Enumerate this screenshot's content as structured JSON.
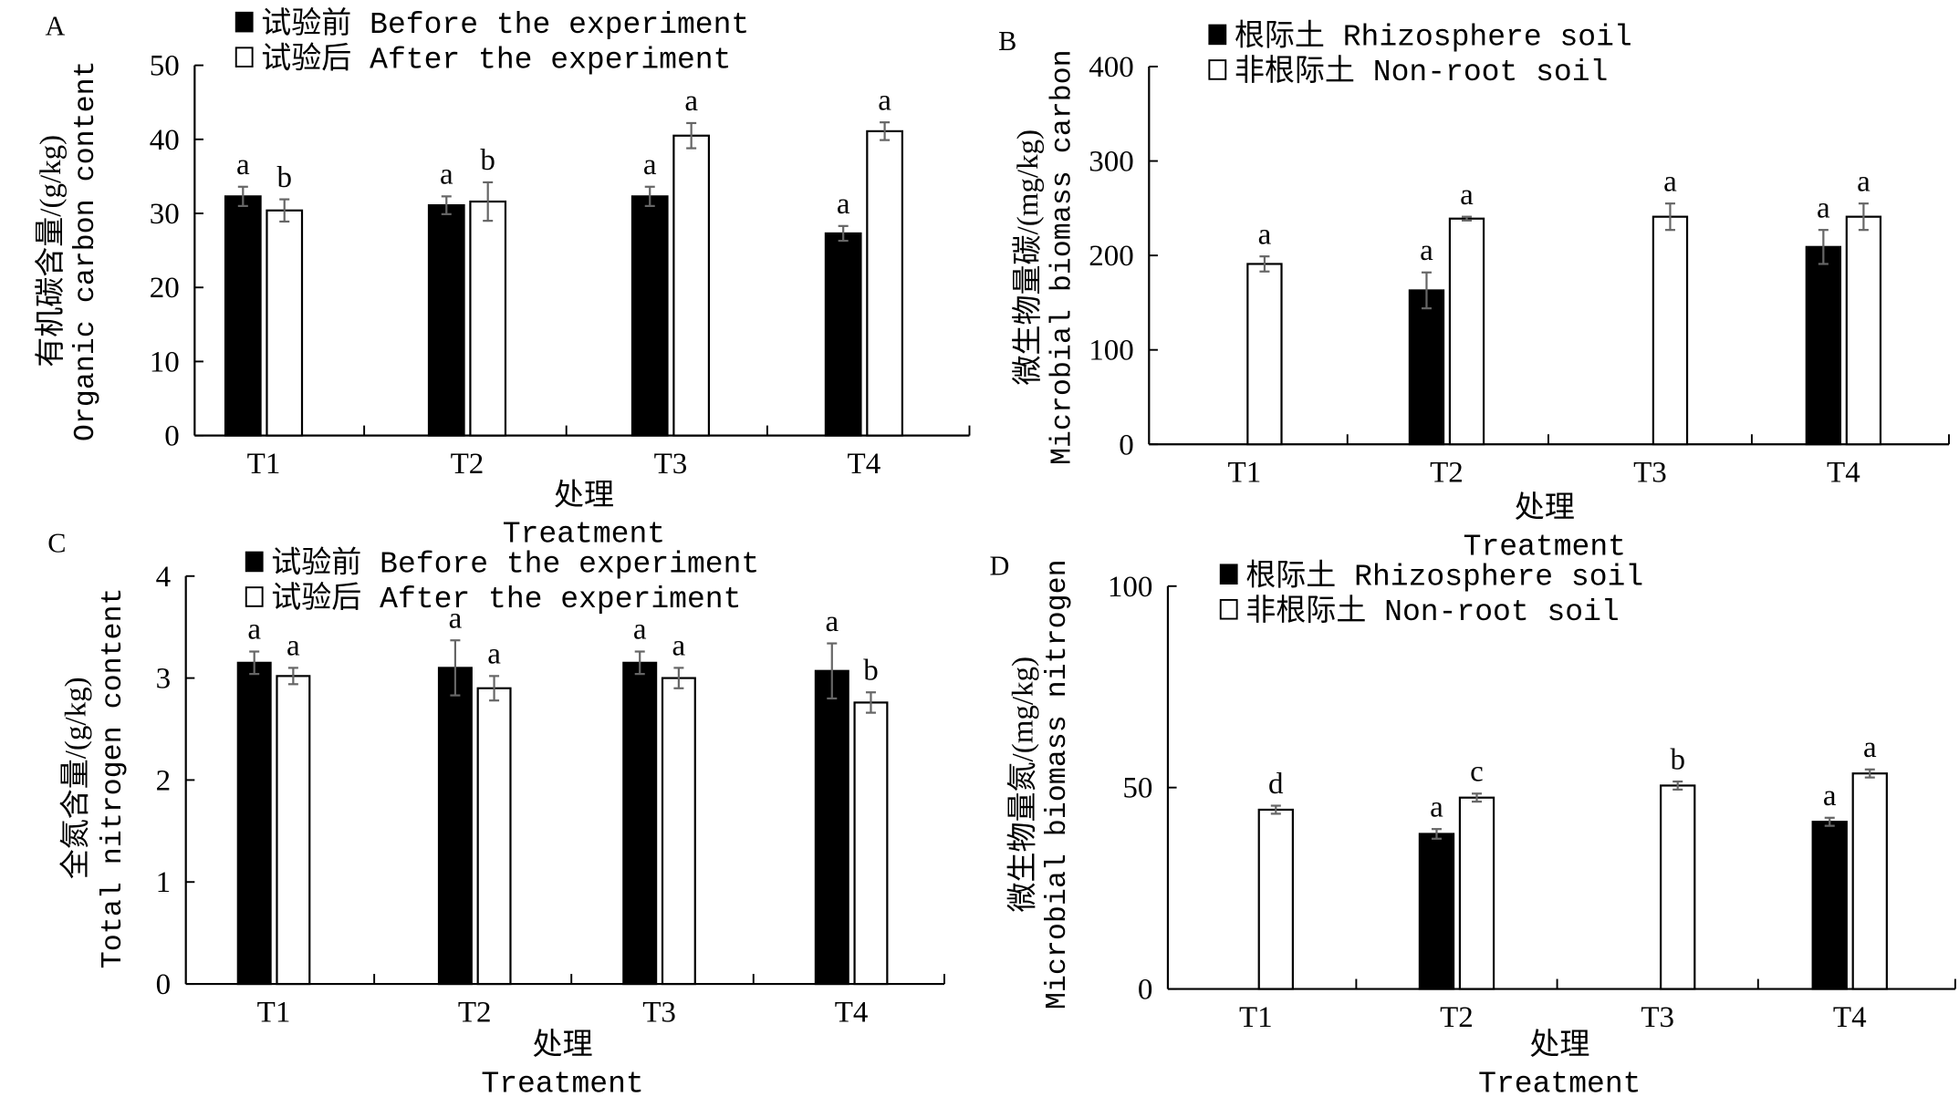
{
  "chart_data": [
    {
      "panel": "A",
      "type": "bar",
      "categories": [
        "T1",
        "T2",
        "T3",
        "T4"
      ],
      "xlabel_cn": "处理",
      "xlabel": "Treatment",
      "ylabel_cn": "有机碳含量/(g/kg)",
      "ylabel": "Organic carbon content",
      "ylim": [
        0,
        50
      ],
      "yticks": [
        0,
        10,
        20,
        30,
        40,
        50
      ],
      "legend": "top-left",
      "series": [
        {
          "name": "试验前 Before the experiment",
          "color": "#000000",
          "values": [
            32.3,
            31.1,
            32.3,
            27.3
          ],
          "errors": [
            1.3,
            1.2,
            1.3,
            1.0
          ],
          "letters": [
            "a",
            "a",
            "a",
            "a"
          ]
        },
        {
          "name": "试验后 After the experiment",
          "color": "#ffffff",
          "values": [
            30.4,
            31.6,
            40.5,
            41.1
          ],
          "errors": [
            1.5,
            2.6,
            1.7,
            1.2
          ],
          "letters": [
            "b",
            "b",
            "a",
            "a"
          ]
        }
      ]
    },
    {
      "panel": "B",
      "type": "bar",
      "categories": [
        "T1",
        "T2",
        "T3",
        "T4"
      ],
      "xlabel_cn": "处理",
      "xlabel": "Treatment",
      "ylabel_cn": "微生物量碳/(mg/kg)",
      "ylabel": "Microbial biomass carbon",
      "ylim": [
        0,
        400
      ],
      "yticks": [
        0,
        100,
        200,
        300,
        400
      ],
      "legend": "top-left",
      "series": [
        {
          "name": "根际土 Rhizosphere soil",
          "color": "#000000",
          "values": [
            null,
            163,
            null,
            209
          ],
          "errors": [
            null,
            19,
            null,
            18
          ],
          "letters": [
            "",
            "a",
            "",
            "a"
          ]
        },
        {
          "name": "非根际土 Non-root soil",
          "color": "#ffffff",
          "values": [
            191,
            239,
            241,
            241
          ],
          "errors": [
            8,
            2,
            14,
            14
          ],
          "letters": [
            "a",
            "a",
            "a",
            "a"
          ]
        }
      ]
    },
    {
      "panel": "C",
      "type": "bar",
      "categories": [
        "T1",
        "T2",
        "T3",
        "T4"
      ],
      "xlabel_cn": "处理",
      "xlabel": "Treatment",
      "ylabel_cn": "全氮含量/(g/kg)",
      "ylabel": "Total nitrogen content",
      "ylim": [
        0,
        4
      ],
      "yticks": [
        0,
        1,
        2,
        3,
        4
      ],
      "legend": "top-left",
      "series": [
        {
          "name": "试验前 Before the experiment",
          "color": "#000000",
          "values": [
            3.15,
            3.1,
            3.15,
            3.07
          ],
          "errors": [
            0.11,
            0.27,
            0.11,
            0.27
          ],
          "letters": [
            "a",
            "a",
            "a",
            "a"
          ]
        },
        {
          "name": "试验后 After the experiment",
          "color": "#ffffff",
          "values": [
            3.02,
            2.9,
            3.0,
            2.76
          ],
          "errors": [
            0.08,
            0.12,
            0.1,
            0.1
          ],
          "letters": [
            "a",
            "a",
            "a",
            "b"
          ]
        }
      ]
    },
    {
      "panel": "D",
      "type": "bar",
      "categories": [
        "T1",
        "T2",
        "T3",
        "T4"
      ],
      "xlabel_cn": "处理",
      "xlabel": "Treatment",
      "ylabel_cn": "微生物量氮/(mg/kg)",
      "ylabel": "Microbial biomass nitrogen",
      "ylim": [
        0,
        100
      ],
      "yticks": [
        0,
        50,
        100
      ],
      "legend": "top-left",
      "series": [
        {
          "name": "根际土 Rhizosphere soil",
          "color": "#000000",
          "values": [
            null,
            38.5,
            null,
            41.5
          ],
          "errors": [
            null,
            1.2,
            null,
            1.0
          ],
          "letters": [
            "",
            "a",
            "",
            "a"
          ]
        },
        {
          "name": "非根际土 Non-root soil",
          "color": "#ffffff",
          "values": [
            44.5,
            47.5,
            50.5,
            53.5
          ],
          "errors": [
            1.0,
            1.0,
            1.0,
            1.0
          ],
          "letters": [
            "d",
            "c",
            "b",
            "a"
          ]
        }
      ]
    }
  ]
}
